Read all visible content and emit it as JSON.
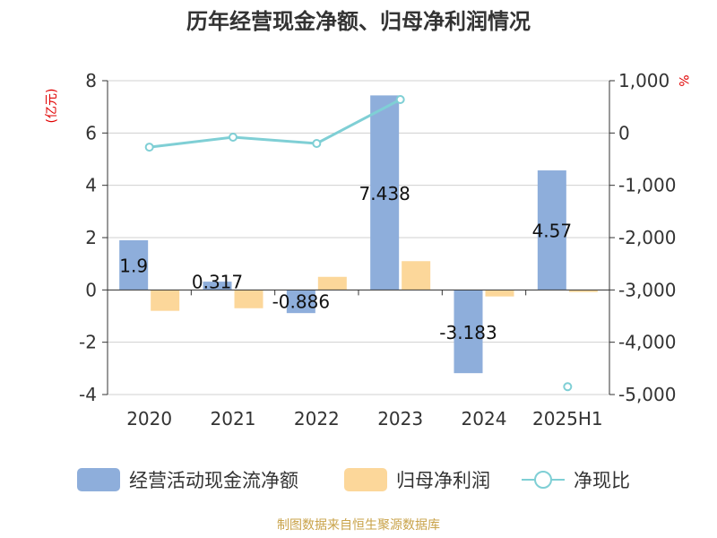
{
  "title": "历年经营现金净额、归母净利润情况",
  "source": "制图数据来自恒生聚源数据库",
  "left_unit": "(亿元)",
  "right_unit": "%",
  "colors": {
    "bar_cash": "#8eaedb",
    "bar_profit": "#fcd79a",
    "line": "#7fcfd5",
    "axis": "#333333",
    "grid": "#d0d0d0",
    "unit": "#e00000",
    "source": "#c9a34a",
    "title": "#333333"
  },
  "chart_data": {
    "type": "bar",
    "categories": [
      "2020",
      "2021",
      "2022",
      "2023",
      "2024",
      "2025H1"
    ],
    "series": [
      {
        "name": "经营活动现金流净额",
        "axis": "left",
        "type": "bar",
        "values": [
          1.9,
          0.317,
          -0.886,
          7.438,
          -3.183,
          4.57
        ],
        "labels": [
          "1.9",
          "0.317",
          "-0.886",
          "7.438",
          "-3.183",
          "4.57"
        ]
      },
      {
        "name": "归母净利润",
        "axis": "left",
        "type": "bar",
        "values": [
          -0.8,
          -0.7,
          0.5,
          1.1,
          -0.25,
          -0.08
        ]
      },
      {
        "name": "净现比",
        "axis": "right",
        "type": "line",
        "values": [
          -270,
          -80,
          -200,
          640,
          null,
          -4850
        ]
      }
    ],
    "yleft": {
      "min": -4,
      "max": 8,
      "ticks": [
        "-4",
        "-2",
        "0",
        "2",
        "4",
        "6",
        "8"
      ]
    },
    "yright": {
      "min": -5000,
      "max": 1000,
      "ticks": [
        "-5,000",
        "-4,000",
        "-3,000",
        "-2,000",
        "-1,000",
        "0",
        "1,000"
      ]
    },
    "grid": true,
    "legend": "bottom"
  }
}
